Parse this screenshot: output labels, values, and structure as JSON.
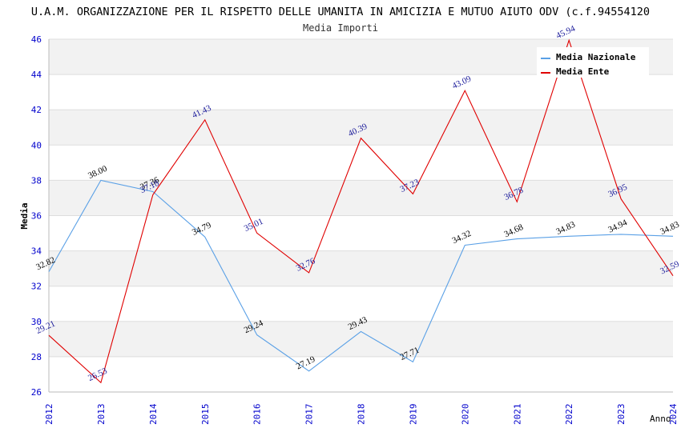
{
  "chart_data": {
    "type": "line",
    "title": "U.A.M. ORGANIZZAZIONE PER IL RISPETTO DELLE UMANITA IN AMICIZIA E MUTUO AIUTO ODV (c.f.94554120",
    "subtitle": "Media Importi",
    "xlabel": "Anno",
    "ylabel": "Media",
    "ylim": [
      26,
      46
    ],
    "yticks": [
      "26",
      "28",
      "30",
      "32",
      "34",
      "36",
      "38",
      "40",
      "42",
      "44",
      "46"
    ],
    "categories": [
      "2012",
      "2013",
      "2014",
      "2015",
      "2016",
      "2017",
      "2018",
      "2019",
      "2020",
      "2021",
      "2022",
      "2023",
      "2024"
    ],
    "series": [
      {
        "name": "Media Nazionale",
        "color": "#5aa0e6",
        "label_color": "#000000",
        "values": [
          32.82,
          38.0,
          37.36,
          34.79,
          29.24,
          27.19,
          29.43,
          27.71,
          34.32,
          34.68,
          34.83,
          34.94,
          34.83
        ],
        "labels": [
          "32.82",
          "38.00",
          "37.36",
          "34.79",
          "29.24",
          "27.19",
          "29.43",
          "27.71",
          "34.32",
          "34.68",
          "34.83",
          "34.94",
          "34.83"
        ]
      },
      {
        "name": "Media Ente",
        "color": "#e00000",
        "label_color": "#1a1a9a",
        "values": [
          29.21,
          26.53,
          37.18,
          41.43,
          35.01,
          32.76,
          40.39,
          37.23,
          43.09,
          36.78,
          45.94,
          36.95,
          32.59
        ],
        "labels": [
          "29.21",
          "26.53",
          "37.18",
          "41.43",
          "35.01",
          "32.76",
          "40.39",
          "37.23",
          "43.09",
          "36.78",
          "45.94",
          "36.95",
          "32.59"
        ]
      }
    ],
    "legend": "top-right",
    "grid": true,
    "axis_color": "#0000cc",
    "band_color": "#f2f2f2",
    "grid_color": "#dddddd"
  }
}
